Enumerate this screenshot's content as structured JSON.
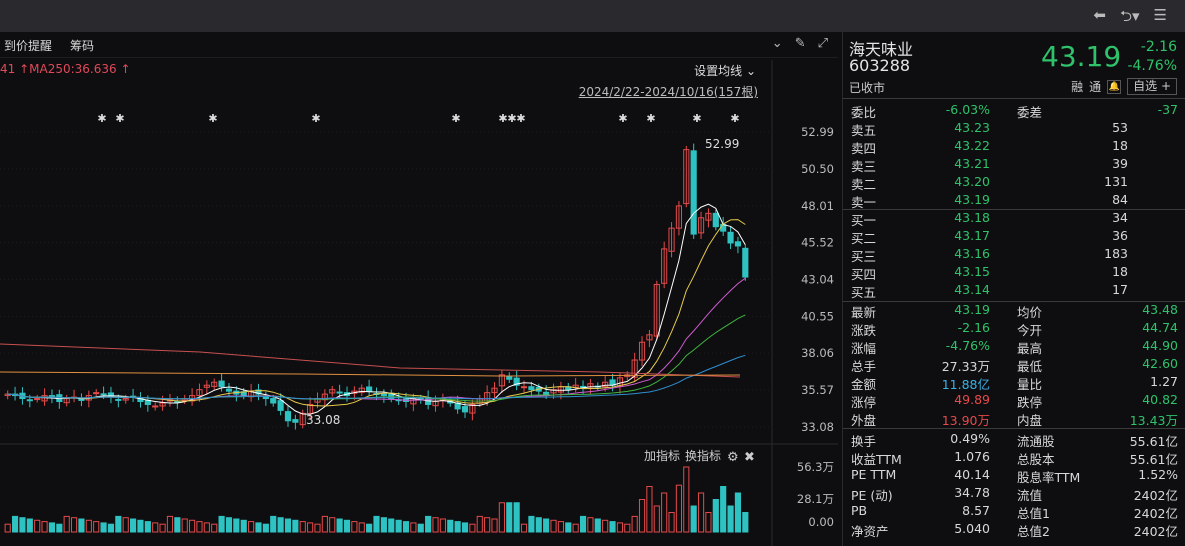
{
  "chart_toolbar": {
    "price_alert": "到价提醒",
    "chips": "筹码"
  },
  "ma_legend": "41 ↑MA250:36.636 ↑",
  "ma_setting": "设置均线",
  "date_range": "2024/2/22-2024/10/16(157根)",
  "indicator_controls": {
    "add": "加指标",
    "switch": "换指标"
  },
  "y_axis_labels": [
    "52.99",
    "50.50",
    "48.01",
    "45.52",
    "43.04",
    "40.55",
    "38.06",
    "35.57",
    "33.08"
  ],
  "vol_axis_labels": [
    "56.3万",
    "28.1万",
    "0.00"
  ],
  "annotations": {
    "high": "52.99",
    "low": "33.08"
  },
  "stock": {
    "name": "海天味业",
    "code": "603288",
    "status": "已收市",
    "price": "43.19",
    "change": "-2.16",
    "change_pct": "-4.76%",
    "tag_rong": "融",
    "tag_tong": "通",
    "watch_btn": "自选 +"
  },
  "book_header": {
    "ratio_label": "委比",
    "ratio": "-6.03%",
    "diff_label": "委差",
    "diff": "-37"
  },
  "asks": [
    {
      "label": "卖五",
      "price": "43.23",
      "qty": "53"
    },
    {
      "label": "卖四",
      "price": "43.22",
      "qty": "18"
    },
    {
      "label": "卖三",
      "price": "43.21",
      "qty": "39"
    },
    {
      "label": "卖二",
      "price": "43.20",
      "qty": "131"
    },
    {
      "label": "卖一",
      "price": "43.19",
      "qty": "84"
    }
  ],
  "bids": [
    {
      "label": "买一",
      "price": "43.18",
      "qty": "34"
    },
    {
      "label": "买二",
      "price": "43.17",
      "qty": "36"
    },
    {
      "label": "买三",
      "price": "43.16",
      "qty": "183"
    },
    {
      "label": "买四",
      "price": "43.15",
      "qty": "18"
    },
    {
      "label": "买五",
      "price": "43.14",
      "qty": "17"
    }
  ],
  "stats": [
    {
      "l1": "最新",
      "v1": "43.19",
      "c1": "g",
      "l2": "均价",
      "v2": "43.48",
      "c2": "g"
    },
    {
      "l1": "涨跌",
      "v1": "-2.16",
      "c1": "g",
      "l2": "今开",
      "v2": "44.74",
      "c2": "g"
    },
    {
      "l1": "涨幅",
      "v1": "-4.76%",
      "c1": "g",
      "l2": "最高",
      "v2": "44.90",
      "c2": "g"
    },
    {
      "l1": "总手",
      "v1": "27.33万",
      "c1": "w",
      "l2": "最低",
      "v2": "42.60",
      "c2": "g"
    },
    {
      "l1": "金额",
      "v1": "11.88亿",
      "c1": "c",
      "l2": "量比",
      "v2": "1.27",
      "c2": "w"
    },
    {
      "l1": "涨停",
      "v1": "49.89",
      "c1": "r",
      "l2": "跌停",
      "v2": "40.82",
      "c2": "g"
    },
    {
      "l1": "外盘",
      "v1": "13.90万",
      "c1": "r",
      "l2": "内盘",
      "v2": "13.43万",
      "c2": "g"
    }
  ],
  "fundamentals": [
    {
      "l1": "换手",
      "v1": "0.49%",
      "l2": "流通股",
      "v2": "55.61亿"
    },
    {
      "l1": "收益TTM",
      "v1": "1.076",
      "l2": "总股本",
      "v2": "55.61亿"
    },
    {
      "l1": "PE TTM",
      "v1": "40.14",
      "l2": "股息率TTM",
      "v2": "1.52%"
    },
    {
      "l1": "PE (动)",
      "v1": "34.78",
      "l2": "流值",
      "v2": "2402亿"
    },
    {
      "l1": "PB",
      "v1": "8.57",
      "l2": "总值1",
      "v2": "2402亿"
    },
    {
      "l1": "净资产",
      "v1": "5.040",
      "l2": "总值2",
      "v2": "2402亿"
    }
  ],
  "colors": {
    "up": "#e54a4a",
    "down": "#2fc2c2",
    "green": "#2fc26b",
    "blue": "#3ab0e8"
  },
  "chart_data": {
    "type": "candlestick",
    "ylim": [
      33.08,
      52.99
    ],
    "close": [
      35.3,
      35.2,
      35.0,
      34.9,
      35.0,
      35.2,
      35.1,
      34.8,
      35.0,
      35.1,
      34.9,
      35.2,
      35.4,
      35.3,
      35.1,
      34.9,
      35.0,
      35.1,
      34.8,
      34.6,
      34.5,
      34.7,
      34.9,
      34.8,
      35.0,
      35.2,
      35.6,
      35.9,
      36.1,
      35.8,
      35.5,
      35.3,
      35.2,
      35.5,
      35.3,
      35.0,
      34.7,
      34.2,
      33.5,
      33.4,
      34.0,
      34.6,
      35.0,
      35.3,
      35.6,
      35.4,
      35.2,
      35.5,
      35.7,
      35.5,
      35.3,
      35.2,
      35.0,
      34.9,
      34.8,
      35.0,
      34.9,
      34.6,
      34.8,
      35.0,
      34.7,
      34.3,
      34.1,
      34.6,
      35.0,
      35.4,
      35.7,
      36.6,
      36.3,
      35.9,
      35.8,
      35.6,
      35.5,
      35.3,
      35.6,
      35.8,
      35.6,
      35.9,
      35.7,
      36.0,
      35.8,
      36.1,
      35.9,
      36.4,
      36.6,
      37.6,
      38.8,
      39.3,
      42.7,
      45.1,
      46.5,
      48.0,
      51.8,
      46.1,
      47.2,
      47.5,
      46.6,
      46.3,
      45.5,
      45.3,
      43.2
    ],
    "vol_max": "56.3万"
  }
}
